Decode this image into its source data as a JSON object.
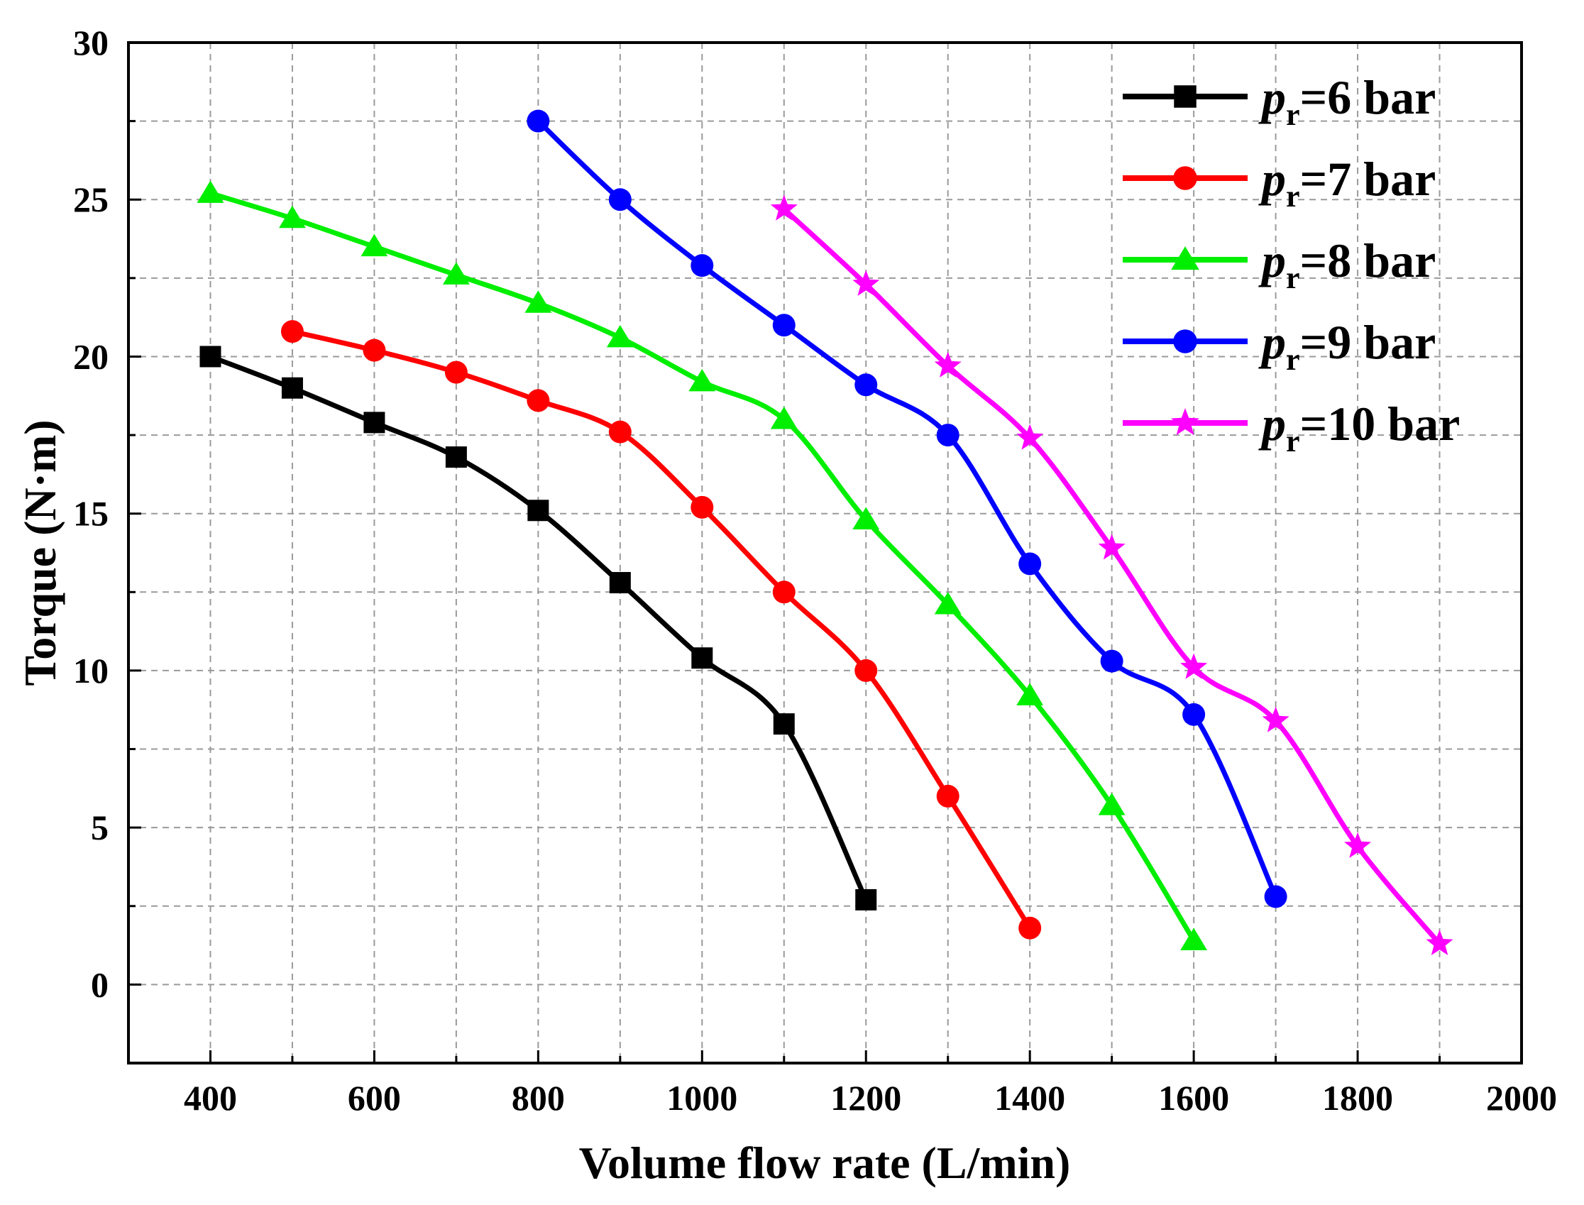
{
  "chart_data": {
    "type": "line",
    "title": "",
    "xlabel": "Volume flow rate (L/min)",
    "ylabel": "Torque (N·m)",
    "xlim": [
      300,
      2000
    ],
    "ylim": [
      -2.5,
      30
    ],
    "x_ticks": [
      400,
      600,
      800,
      1000,
      1200,
      1400,
      1600,
      1800,
      2000
    ],
    "x_minor_ticks": [
      500,
      700,
      900,
      1100,
      1300,
      1500,
      1700,
      1900
    ],
    "y_ticks": [
      0,
      5,
      10,
      15,
      20,
      25,
      30
    ],
    "y_minor_ticks": [
      2.5,
      7.5,
      12.5,
      17.5,
      22.5,
      27.5
    ],
    "grid": true,
    "legend_position": "top-right",
    "series": [
      {
        "name": "=6 bar",
        "p_symbol": "p",
        "p_subscript": "r",
        "color": "#000000",
        "marker": "square",
        "x": [
          400,
          500,
          600,
          700,
          800,
          900,
          1000,
          1100,
          1200
        ],
        "y": [
          20.0,
          19.0,
          17.9,
          16.8,
          15.1,
          12.8,
          10.4,
          8.3,
          2.7
        ]
      },
      {
        "name": "=7 bar",
        "p_symbol": "p",
        "p_subscript": "r",
        "color": "#ff0000",
        "marker": "circle",
        "x": [
          500,
          600,
          700,
          800,
          900,
          1000,
          1100,
          1200,
          1300,
          1400
        ],
        "y": [
          20.8,
          20.2,
          19.5,
          18.6,
          17.6,
          15.2,
          12.5,
          10.0,
          6.0,
          1.8
        ]
      },
      {
        "name": "=8 bar",
        "p_symbol": "p",
        "p_subscript": "r",
        "color": "#00ee00",
        "marker": "triangle",
        "x": [
          400,
          500,
          600,
          700,
          800,
          900,
          1000,
          1100,
          1200,
          1300,
          1400,
          1500,
          1600
        ],
        "y": [
          25.2,
          24.4,
          23.5,
          22.6,
          21.7,
          20.6,
          19.2,
          18.0,
          14.8,
          12.1,
          9.2,
          5.7,
          1.4
        ]
      },
      {
        "name": "=9 bar",
        "p_symbol": "p",
        "p_subscript": "r",
        "color": "#0000ff",
        "marker": "circle",
        "x": [
          800,
          900,
          1000,
          1100,
          1200,
          1300,
          1400,
          1500,
          1600,
          1700
        ],
        "y": [
          27.5,
          25.0,
          22.9,
          21.0,
          19.1,
          17.5,
          13.4,
          10.3,
          8.6,
          2.8
        ]
      },
      {
        "name": "=10 bar",
        "p_symbol": "p",
        "p_subscript": "r",
        "color": "#ff00ff",
        "marker": "star",
        "x": [
          1100,
          1200,
          1300,
          1400,
          1500,
          1600,
          1700,
          1800,
          1900
        ],
        "y": [
          24.7,
          22.3,
          19.7,
          17.4,
          13.9,
          10.1,
          8.4,
          4.4,
          1.3
        ]
      }
    ]
  }
}
